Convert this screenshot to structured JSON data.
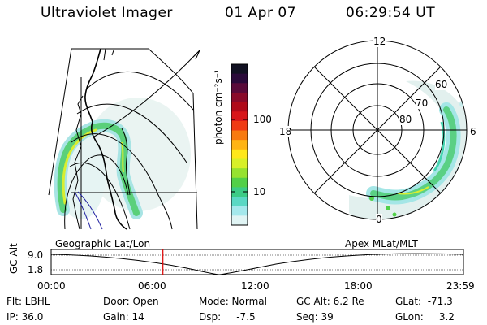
{
  "header": {
    "title": "Ultraviolet Imager",
    "date": "01 Apr 07",
    "time": "06:29:54 UT"
  },
  "colorbar": {
    "label": "photon cm⁻²s⁻¹",
    "ticks": [
      "100",
      "10"
    ],
    "colors": [
      "#111122",
      "#2a0a3a",
      "#5a0a3a",
      "#8a0a2a",
      "#b00a1a",
      "#d8161a",
      "#f03a14",
      "#f87a10",
      "#ffb414",
      "#ffe81a",
      "#d8f028",
      "#96e230",
      "#52d048",
      "#3ccc86",
      "#5ad8c4",
      "#a4e8ec",
      "#e0f4f4"
    ]
  },
  "polar": {
    "mlt_labels": [
      "12",
      "18",
      "6",
      "0"
    ],
    "lat_labels": [
      "60",
      "70",
      "80"
    ]
  },
  "timeline": {
    "left_label": "Geographic Lat/Lon",
    "right_label": "Apex MLat/MLT",
    "y_title": "GC Alt",
    "y_ticks": [
      "9.0",
      "1.8"
    ],
    "x_ticks": [
      "00:00",
      "06:00",
      "12:00",
      "18:00",
      "23:59"
    ],
    "current_marker_fraction": 0.271
  },
  "info": {
    "flt": "Flt: LBHL",
    "door": "Door: Open",
    "mode": "Mode: Normal",
    "gc_alt": "GC Alt: 6.2 Re",
    "glat": "GLat:  -71.3",
    "ip": "IP: 36.0",
    "gain": "Gain: 14",
    "dsp": "Dsp:     -7.5",
    "seq": "Seq: 39",
    "glon": "GLon:     3.2"
  },
  "colors": {
    "marker": "#dd0000",
    "coast": "#000000"
  }
}
